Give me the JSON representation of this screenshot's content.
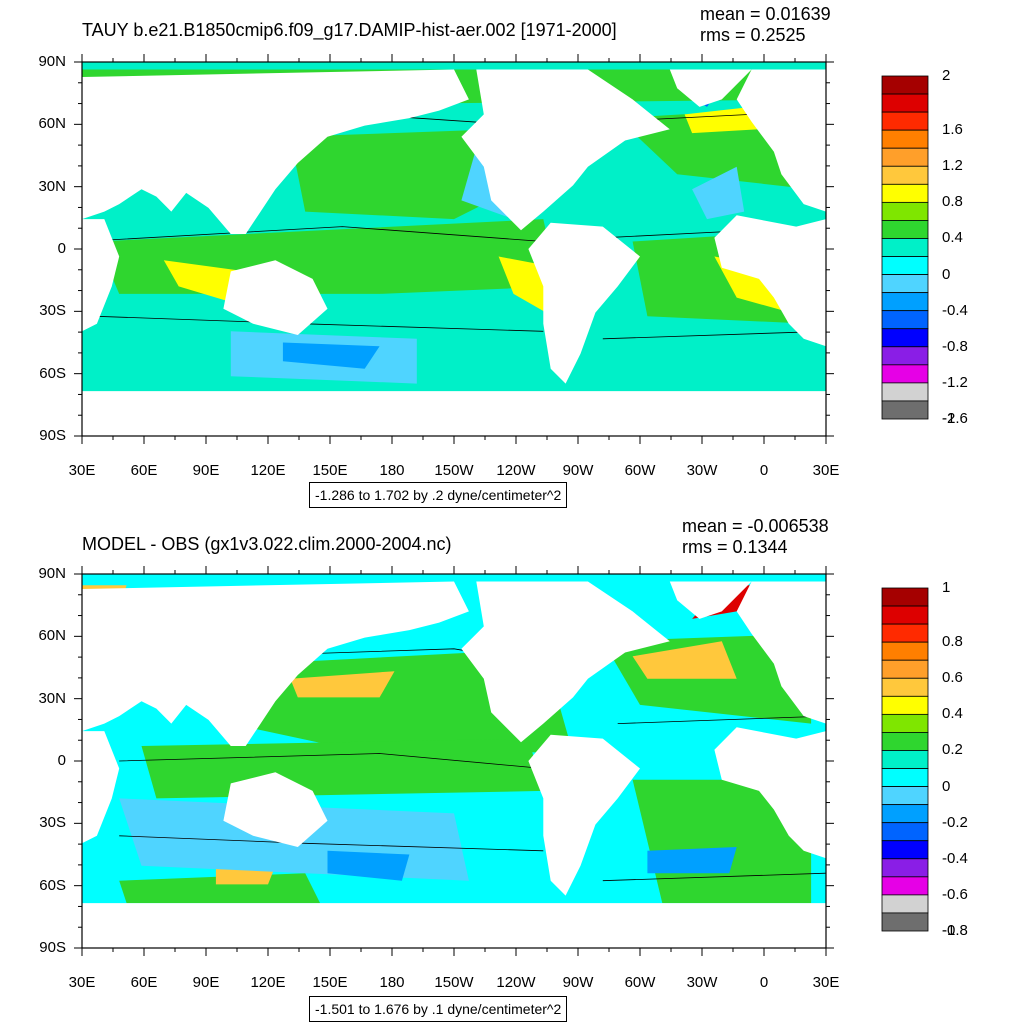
{
  "panels": [
    {
      "title": "TAUY b.e21.B1850cmip6.f09_g17.DAMIP-hist-aer.002 [1971-2000]",
      "mean": "mean = 0.01639",
      "rms": "rms = 0.2525",
      "range_text": "-1.286 to 1.702 by .2 dyne/centimeter^2",
      "colorbar_labels": [
        "2",
        "1.6",
        "1.2",
        "0.8",
        "0.4",
        "0",
        "-0.4",
        "-0.8",
        "-1.2",
        "-1.6",
        "-2"
      ]
    },
    {
      "title": "MODEL - OBS (gx1v3.022.clim.2000-2004.nc)",
      "mean": "mean = -0.006538",
      "rms": "rms = 0.1344",
      "range_text": "-1.501 to 1.676 by .1 dyne/centimeter^2",
      "colorbar_labels": [
        "1",
        "0.8",
        "0.6",
        "0.4",
        "0.2",
        "0",
        "-0.2",
        "-0.4",
        "-0.6",
        "-0.8",
        "-1"
      ]
    }
  ],
  "lat_labels": [
    "90N",
    "60N",
    "30N",
    "0",
    "30S",
    "60S",
    "90S"
  ],
  "lon_labels": [
    "30E",
    "60E",
    "90E",
    "120E",
    "150E",
    "180",
    "150W",
    "120W",
    "90W",
    "60W",
    "30W",
    "0",
    "30E"
  ],
  "colorbar_colors": [
    "#a50000",
    "#dd0000",
    "#ff2a00",
    "#ff7f00",
    "#ff9f2a",
    "#ffc83c",
    "#ffff00",
    "#7fe600",
    "#2fd62f",
    "#00f0c8",
    "#00ffff",
    "#4fd4ff",
    "#00a0ff",
    "#0064ff",
    "#0000ff",
    "#8a1ee6",
    "#e600e6",
    "#d2d2d2",
    "#6e6e6e"
  ]
}
